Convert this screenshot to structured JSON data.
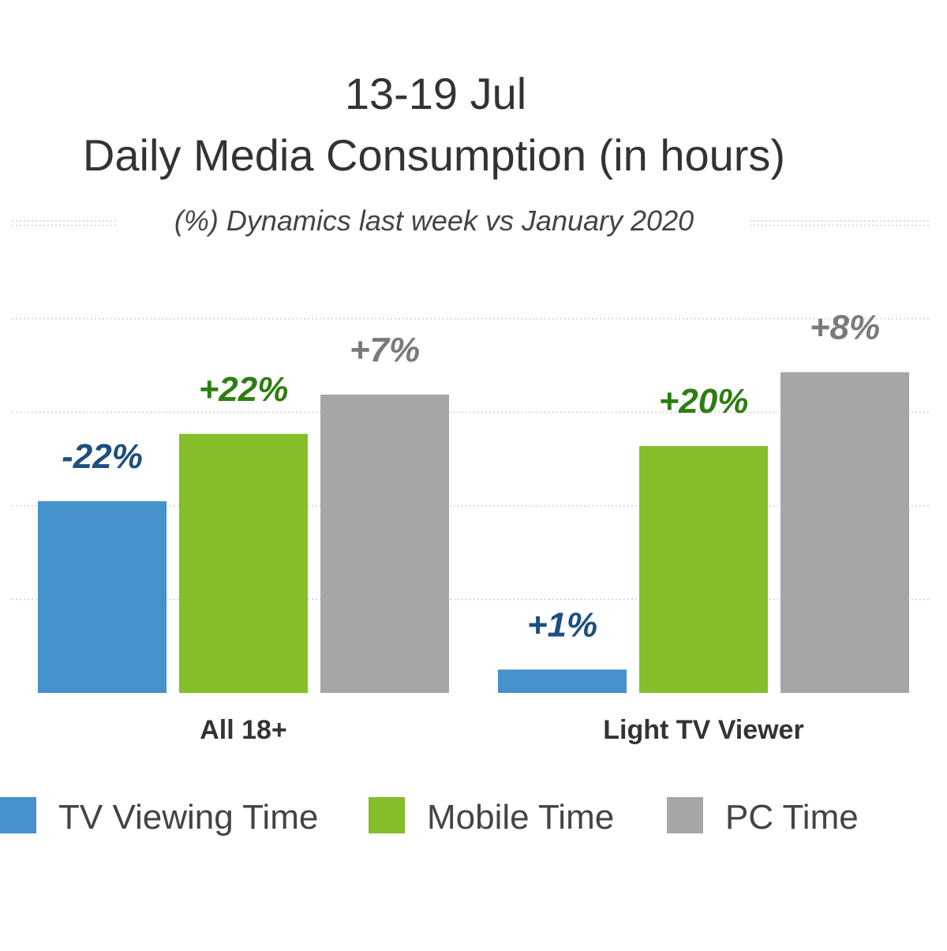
{
  "chart_data": {
    "type": "bar",
    "title": "13-19 Jul",
    "subtitle": "Daily Media Consumption (in hours)",
    "note": "(%) Dynamics last week  vs January 2020",
    "xlabel": "",
    "ylabel": "",
    "categories": [
      "All 18+",
      "Light TV Viewer"
    ],
    "series": [
      {
        "name": "TV Viewing Time",
        "color": "#4591cc",
        "label_color": "#1e4f7e",
        "values": [
          2.05,
          0.25
        ],
        "labels": [
          "-22%",
          "+1%"
        ]
      },
      {
        "name": "Mobile Time",
        "color": "#84be2a",
        "label_color": "#2e7d12",
        "values": [
          2.77,
          2.64
        ],
        "labels": [
          "+22%",
          "+20%"
        ]
      },
      {
        "name": "PC Time",
        "color": "#a6a6a6",
        "label_color": "#7a7a7a",
        "values": [
          3.19,
          3.43
        ],
        "labels": [
          "+7%",
          "+8%"
        ]
      }
    ],
    "ylim": [
      0,
      5
    ],
    "grid": true,
    "legend_position": "bottom"
  }
}
